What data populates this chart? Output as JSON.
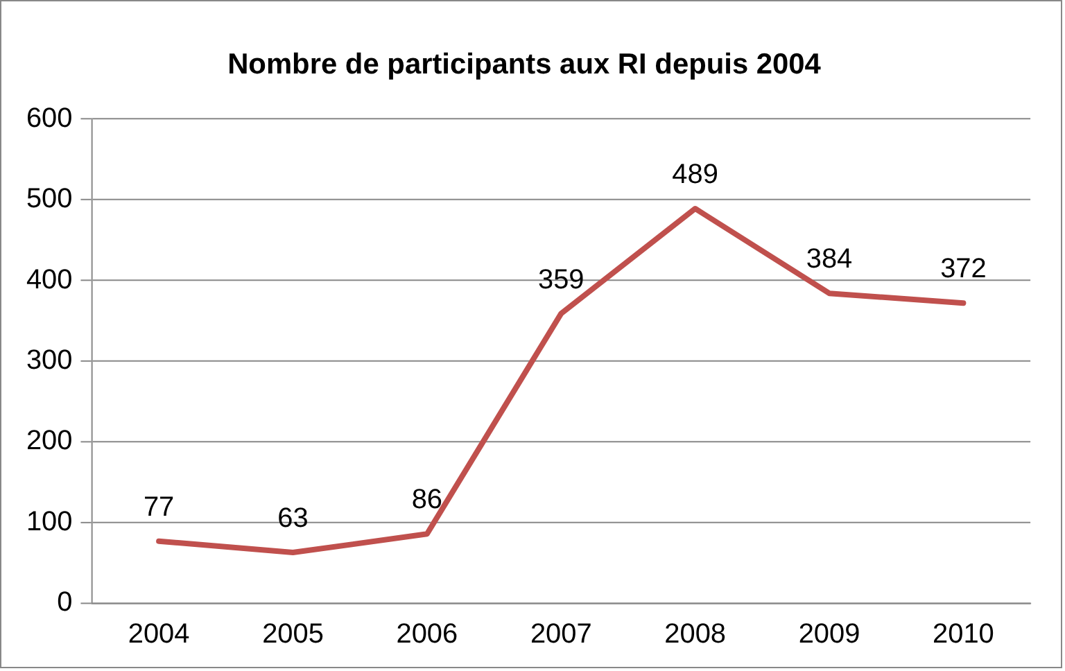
{
  "chart_data": {
    "type": "line",
    "title": "Nombre de participants aux RI depuis 2004",
    "categories": [
      "2004",
      "2005",
      "2006",
      "2007",
      "2008",
      "2009",
      "2010"
    ],
    "series": [
      {
        "color": "#c0504d",
        "values": [
          77,
          63,
          86,
          359,
          489,
          384,
          372
        ]
      }
    ],
    "ylim": [
      0,
      600
    ],
    "yticks": [
      0,
      100,
      200,
      300,
      400,
      500,
      600
    ],
    "grid": "y",
    "legend": false,
    "marker": "none",
    "line_style": "solid",
    "data_labels": true
  }
}
